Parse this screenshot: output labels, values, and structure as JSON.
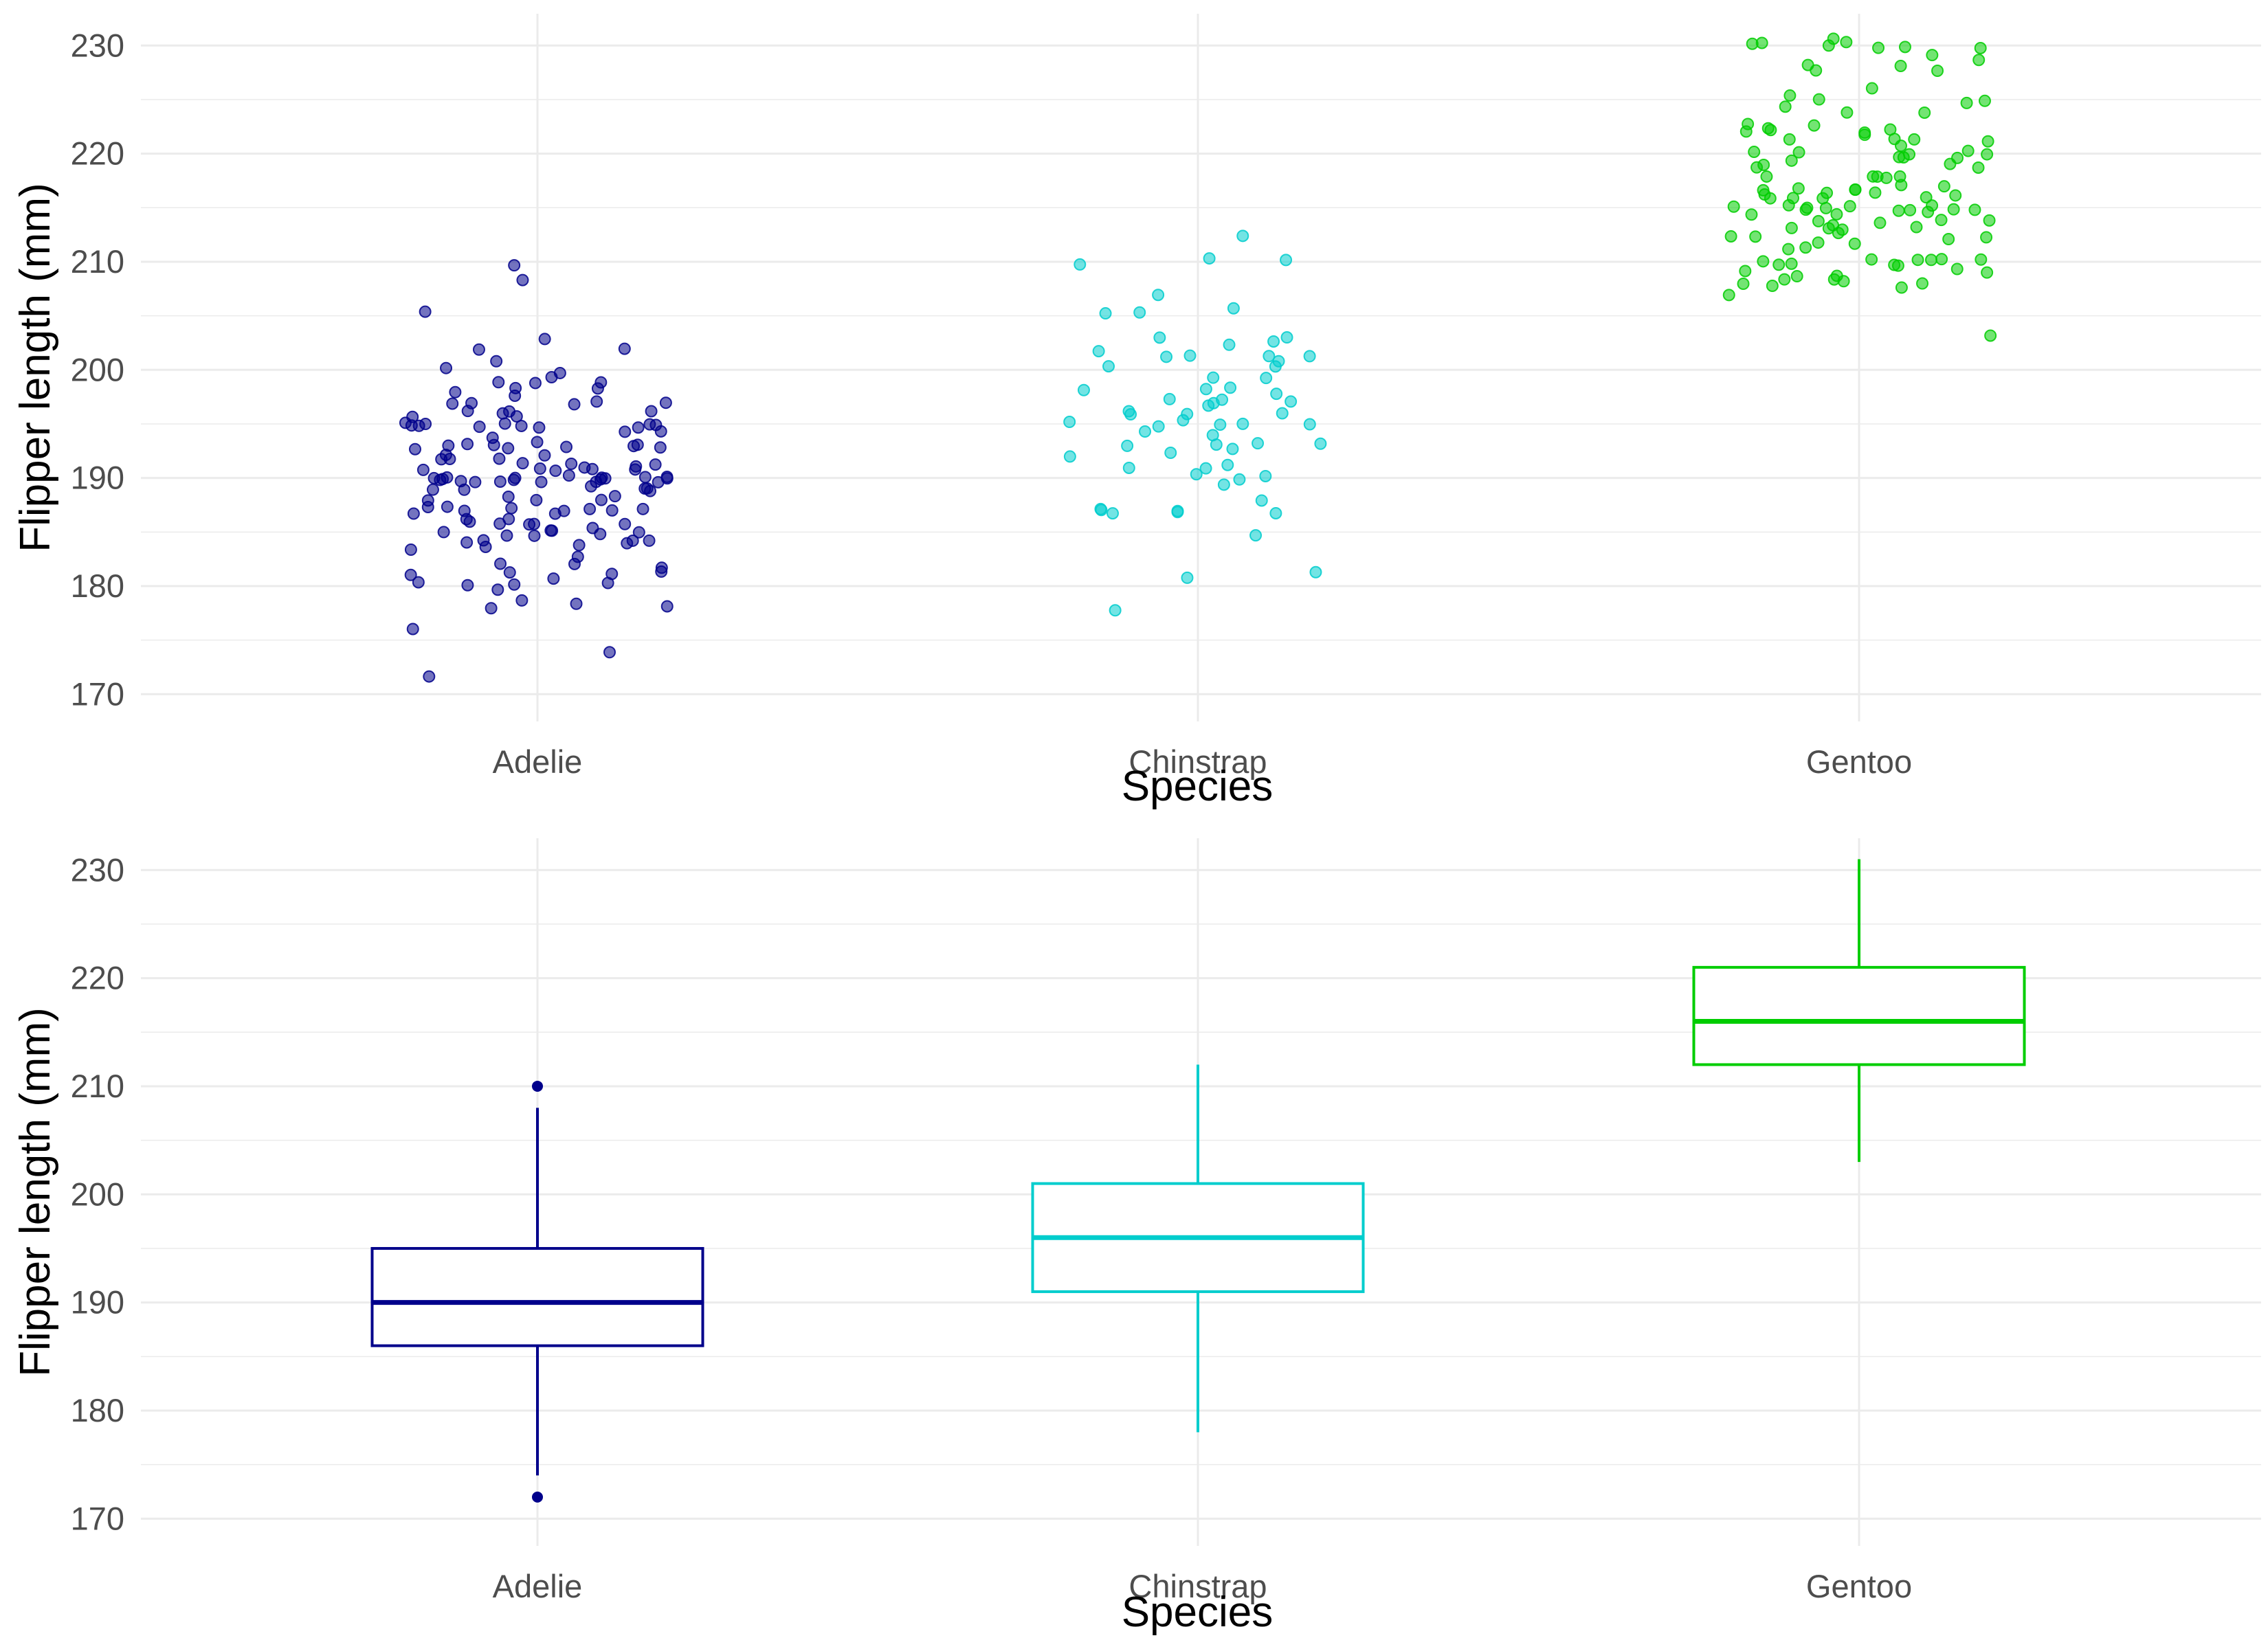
{
  "chart_data": [
    {
      "type": "scatter",
      "subtype": "jitter",
      "xlabel": "Species",
      "ylabel": "Flipper length (mm)",
      "categories": [
        "Adelie",
        "Chinstrap",
        "Gentoo"
      ],
      "ylim": [
        170,
        230
      ],
      "yticks": [
        170,
        180,
        190,
        200,
        210,
        220,
        230
      ],
      "grid": true,
      "legend": "none",
      "colors": [
        "#00008b",
        "#00cdcd",
        "#00cd00"
      ],
      "series": [
        {
          "category": "Adelie",
          "values": [
            181,
            186,
            195,
            193,
            190,
            181,
            195,
            193,
            190,
            186,
            180,
            182,
            191,
            198,
            185,
            195,
            197,
            184,
            194,
            174,
            180,
            189,
            185,
            180,
            187,
            183,
            187,
            172,
            180,
            178,
            178,
            188,
            184,
            195,
            196,
            190,
            180,
            181,
            184,
            182,
            195,
            186,
            196,
            185,
            190,
            182,
            179,
            190,
            191,
            186,
            188,
            190,
            200,
            187,
            191,
            186,
            193,
            181,
            194,
            185,
            195,
            185,
            192,
            184,
            192,
            195,
            188,
            190,
            198,
            190,
            190,
            196,
            197,
            190,
            195,
            191,
            184,
            187,
            195,
            189,
            196,
            187,
            193,
            191,
            194,
            190,
            189,
            189,
            190,
            202,
            205,
            185,
            186,
            187,
            208,
            190,
            196,
            178,
            192,
            192,
            203,
            183,
            190,
            193,
            184,
            199,
            190,
            181,
            197,
            198,
            191,
            193,
            197,
            191,
            196,
            188,
            199,
            189,
            189,
            187,
            198,
            176,
            202,
            186,
            199,
            191,
            195,
            191,
            210,
            190,
            197,
            193,
            199,
            187,
            190,
            191,
            200,
            185,
            193,
            193,
            187,
            188,
            190,
            192,
            185,
            190,
            184,
            195,
            193,
            187,
            201
          ]
        },
        {
          "category": "Chinstrap",
          "values": [
            192,
            196,
            193,
            188,
            197,
            198,
            178,
            197,
            195,
            198,
            193,
            194,
            185,
            201,
            190,
            201,
            197,
            181,
            190,
            195,
            181,
            191,
            187,
            193,
            195,
            197,
            200,
            200,
            191,
            205,
            187,
            201,
            187,
            203,
            195,
            199,
            195,
            210,
            192,
            205,
            210,
            187,
            196,
            196,
            196,
            201,
            190,
            212,
            187,
            198,
            199,
            201,
            193,
            203,
            187,
            197,
            191,
            203,
            202,
            194,
            206,
            189,
            195,
            207,
            202,
            193,
            210,
            198
          ]
        },
        {
          "category": "Gentoo",
          "values": [
            211,
            230,
            210,
            218,
            215,
            210,
            211,
            219,
            209,
            215,
            214,
            216,
            214,
            213,
            210,
            217,
            210,
            221,
            209,
            222,
            218,
            215,
            213,
            215,
            215,
            215,
            216,
            215,
            210,
            220,
            222,
            209,
            207,
            230,
            220,
            220,
            213,
            219,
            208,
            208,
            208,
            225,
            210,
            216,
            222,
            217,
            210,
            225,
            213,
            215,
            210,
            220,
            210,
            225,
            217,
            220,
            208,
            220,
            208,
            224,
            208,
            221,
            214,
            231,
            219,
            230,
            214,
            229,
            220,
            223,
            216,
            221,
            221,
            217,
            216,
            230,
            209,
            220,
            215,
            223,
            212,
            221,
            212,
            224,
            212,
            228,
            218,
            218,
            212,
            230,
            218,
            228,
            212,
            224,
            214,
            226,
            216,
            222,
            203,
            225,
            219,
            228,
            215,
            228,
            216,
            215,
            210,
            219,
            208,
            209,
            216,
            229,
            213,
            230,
            217,
            230,
            217,
            222,
            214,
            215,
            222,
            212,
            213
          ]
        }
      ]
    },
    {
      "type": "box",
      "xlabel": "Species",
      "ylabel": "Flipper length (mm)",
      "categories": [
        "Adelie",
        "Chinstrap",
        "Gentoo"
      ],
      "ylim": [
        170,
        230
      ],
      "yticks": [
        170,
        180,
        190,
        200,
        210,
        220,
        230
      ],
      "grid": true,
      "legend": "none",
      "colors": [
        "#00008b",
        "#00cdcd",
        "#00cd00"
      ],
      "boxes": [
        {
          "category": "Adelie",
          "whisker_low": 174,
          "q1": 186,
          "median": 190,
          "q3": 195,
          "whisker_high": 208,
          "outliers": [
            172,
            210
          ]
        },
        {
          "category": "Chinstrap",
          "whisker_low": 178,
          "q1": 191,
          "median": 196,
          "q3": 201,
          "whisker_high": 212,
          "outliers": []
        },
        {
          "category": "Gentoo",
          "whisker_low": 203,
          "q1": 212,
          "median": 216,
          "q3": 221,
          "whisker_high": 231,
          "outliers": []
        }
      ]
    }
  ]
}
